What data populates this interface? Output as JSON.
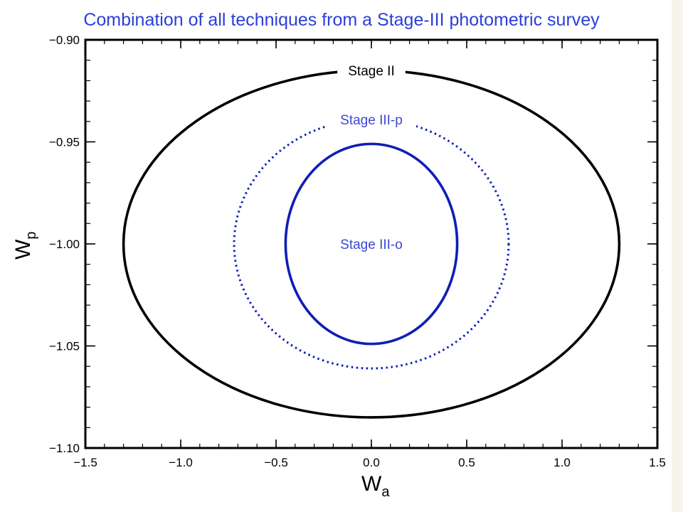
{
  "slide": {
    "title": "Combination of all techniques from a Stage-III photometric survey"
  },
  "colors": {
    "title": "#2b3fd6",
    "stage_ii": "#000000",
    "stage_iii": "#0f1fb4",
    "stage_iii_label": "#3a48d0",
    "background": "#ffffff"
  },
  "chart_data": {
    "type": "contour",
    "title": "Combination of all techniques from a Stage-III photometric survey",
    "xlabel": "W",
    "xlabel_sub": "a",
    "ylabel": "W",
    "ylabel_sub": "p",
    "xlim": [
      -1.5,
      1.5
    ],
    "ylim": [
      -1.1,
      -0.9
    ],
    "x_ticks": [
      -1.5,
      -1.0,
      -0.5,
      0.0,
      0.5,
      1.0,
      1.5
    ],
    "x_tick_labels": [
      "−1.5",
      "−1.0",
      "−0.5",
      "0.0",
      "0.5",
      "1.0",
      "1.5"
    ],
    "y_ticks": [
      -0.9,
      -0.95,
      -1.0,
      -1.05,
      -1.1
    ],
    "y_tick_labels": [
      "−0.90",
      "−0.95",
      "−1.00",
      "−1.05",
      "−1.10"
    ],
    "grid": false,
    "contours": [
      {
        "label": "Stage II",
        "center": [
          0.0,
          -1.0
        ],
        "x_halfwidth": 1.3,
        "y_halfwidth": 0.085,
        "line_style": "solid",
        "color": "#000000",
        "label_at": "top"
      },
      {
        "label": "Stage III-p",
        "center": [
          0.0,
          -1.0
        ],
        "x_halfwidth": 0.72,
        "y_halfwidth": 0.061,
        "line_style": "dotted",
        "color": "#0f1fb4",
        "label_at": "top"
      },
      {
        "label": "Stage III-o",
        "center": [
          0.0,
          -1.0
        ],
        "x_halfwidth": 0.45,
        "y_halfwidth": 0.049,
        "line_style": "solid",
        "color": "#0f1fb4",
        "label_at": "center"
      }
    ]
  }
}
